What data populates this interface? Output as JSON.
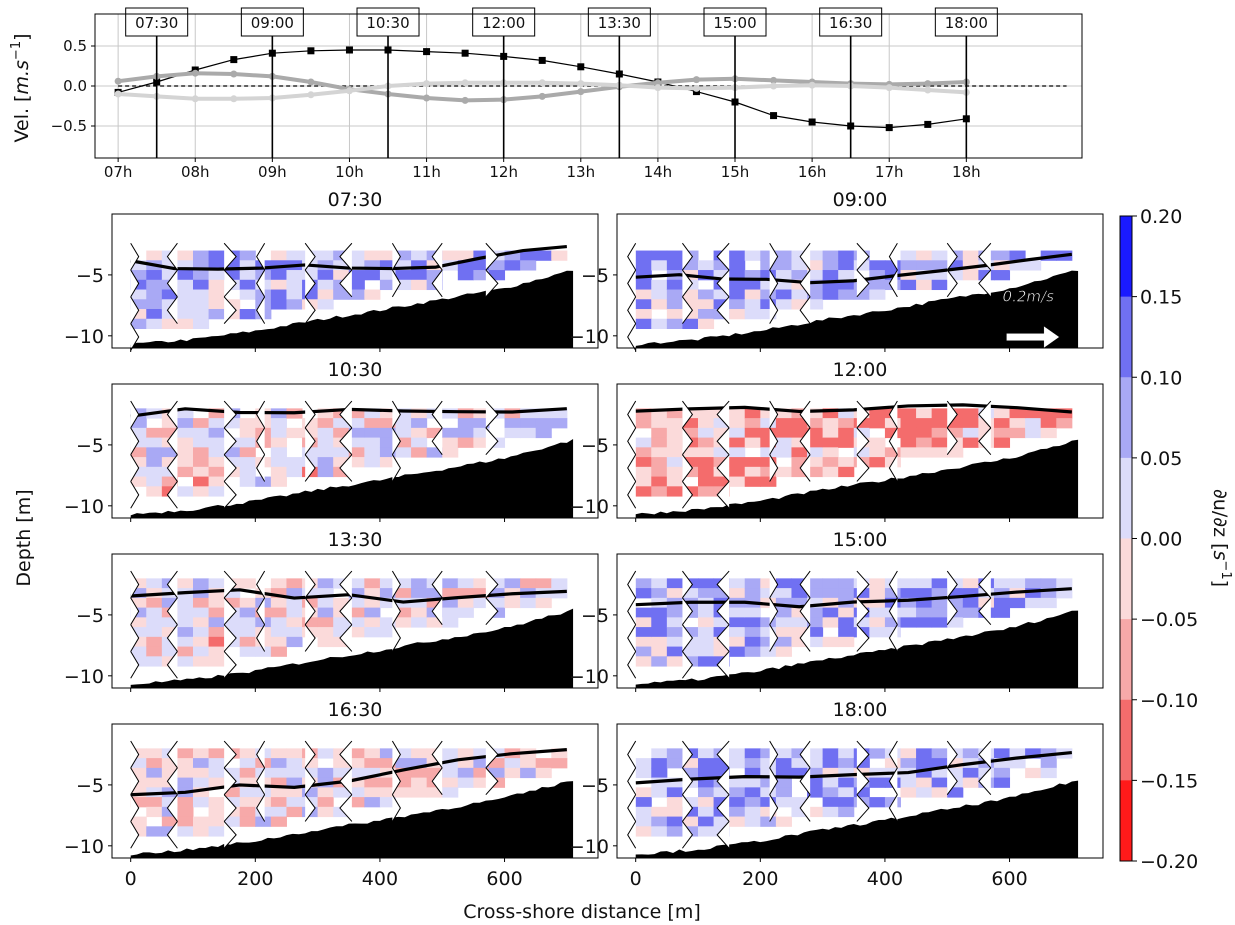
{
  "chart_data": [
    {
      "type": "line",
      "ylabel_text": "Vel. [",
      "ylabel_unit": "m.s",
      "ylabel_exp": "−1",
      "ylabel_close": "]",
      "x_ticks": [
        "07h",
        "08h",
        "09h",
        "10h",
        "11h",
        "12h",
        "13h",
        "14h",
        "15h",
        "16h",
        "17h",
        "18h"
      ],
      "y_ticks": [
        "0.5",
        "0.0",
        "−0.5"
      ],
      "y_tick_values": [
        0.5,
        0.0,
        -0.5
      ],
      "ylim": [
        -0.9,
        0.9
      ],
      "xlim": [
        6.7,
        19.5
      ],
      "grid": true,
      "time_markers": [
        {
          "label": "07:30",
          "hour": 7.5
        },
        {
          "label": "09:00",
          "hour": 9.0
        },
        {
          "label": "10:30",
          "hour": 10.5
        },
        {
          "label": "12:00",
          "hour": 12.0
        },
        {
          "label": "13:30",
          "hour": 13.5
        },
        {
          "label": "15:00",
          "hour": 15.0
        },
        {
          "label": "16:30",
          "hour": 16.5
        },
        {
          "label": "18:00",
          "hour": 18.0
        }
      ],
      "series": [
        {
          "color": "#000000",
          "x": [
            7,
            7.5,
            8,
            8.5,
            9,
            9.5,
            10,
            10.5,
            11,
            11.5,
            12,
            12.5,
            13,
            13.5,
            14,
            14.5,
            15,
            15.5,
            16,
            16.5,
            17,
            17.5,
            18
          ],
          "values": [
            -0.08,
            0.05,
            0.2,
            0.33,
            0.41,
            0.44,
            0.45,
            0.45,
            0.43,
            0.41,
            0.37,
            0.32,
            0.24,
            0.15,
            0.05,
            -0.07,
            -0.2,
            -0.37,
            -0.45,
            -0.5,
            -0.52,
            -0.48,
            -0.41
          ]
        },
        {
          "color": "#aaaaaa",
          "x": [
            7,
            7.5,
            8,
            8.5,
            9,
            9.5,
            10,
            10.5,
            11,
            11.5,
            12,
            12.5,
            13,
            13.5,
            14,
            14.5,
            15,
            15.5,
            16,
            16.5,
            17,
            17.5,
            18
          ],
          "values": [
            0.06,
            0.12,
            0.16,
            0.15,
            0.12,
            0.05,
            -0.04,
            -0.1,
            -0.15,
            -0.18,
            -0.17,
            -0.13,
            -0.07,
            -0.01,
            0.04,
            0.08,
            0.09,
            0.07,
            0.05,
            0.03,
            0.02,
            0.03,
            0.05
          ]
        },
        {
          "color": "#d4d4d4",
          "x": [
            7,
            7.5,
            8,
            8.5,
            9,
            9.5,
            10,
            10.5,
            11,
            11.5,
            12,
            12.5,
            13,
            13.5,
            14,
            14.5,
            15,
            15.5,
            16,
            16.5,
            17,
            17.5,
            18
          ],
          "values": [
            -0.1,
            -0.13,
            -0.16,
            -0.16,
            -0.15,
            -0.11,
            -0.06,
            0.0,
            0.03,
            0.04,
            0.04,
            0.04,
            0.03,
            0.01,
            -0.02,
            -0.03,
            -0.02,
            0.0,
            0.01,
            0.0,
            -0.02,
            -0.05,
            -0.08
          ]
        }
      ]
    },
    {
      "type": "heatmap",
      "panels": [
        {
          "title": "07:30",
          "surface": -3.0,
          "contour": [
            -4.0,
            -4.3,
            -4.6,
            -4.4,
            -4.3,
            -4.5,
            -4.6,
            -4.2,
            -3.8,
            -3.0,
            -2.8
          ],
          "sign": 1
        },
        {
          "title": "09:00",
          "surface": -3.0,
          "contour": [
            -5.1,
            -5.0,
            -5.3,
            -5.4,
            -5.6,
            -5.5,
            -5.2,
            -4.8,
            -4.2,
            -3.7,
            -3.5
          ],
          "sign": 1
        },
        {
          "title": "10:30",
          "surface": -2.0,
          "contour": [
            -2.5,
            -2.2,
            -2.3,
            -2.4,
            -2.1,
            -2.2,
            -2.3,
            -2.1,
            -2.0
          ],
          "sign": 0
        },
        {
          "title": "12:00",
          "surface": -2.0,
          "contour": [
            -2.2,
            -2.0,
            -2.1,
            -2.2,
            -2.0,
            -1.8,
            -1.9,
            -2.1,
            -2.3
          ],
          "sign": -1
        },
        {
          "title": "13:30",
          "surface": -2.0,
          "contour": [
            -3.6,
            -3.3,
            -3.0,
            -3.5,
            -3.2,
            -3.8,
            -3.5,
            -3.1,
            -2.9
          ],
          "sign": 0
        },
        {
          "title": "15:00",
          "surface": -2.0,
          "contour": [
            -4.1,
            -4.0,
            -3.8,
            -4.2,
            -4.0,
            -3.6,
            -3.4,
            -3.1,
            -2.7
          ],
          "sign": 1
        },
        {
          "title": "16:30",
          "surface": -2.0,
          "contour": [
            -6.0,
            -5.5,
            -5.0,
            -5.2,
            -4.5,
            -3.6,
            -3.0,
            -2.5,
            -2.2
          ],
          "sign": 0
        },
        {
          "title": "18:00",
          "surface": -2.0,
          "contour": [
            -4.9,
            -4.6,
            -4.3,
            -4.4,
            -4.1,
            -3.8,
            -3.3,
            -2.7,
            -2.2
          ],
          "sign": 1
        }
      ],
      "x_ticks": [
        "0",
        "200",
        "400",
        "600"
      ],
      "x_tick_values": [
        0,
        200,
        400,
        600
      ],
      "y_ticks": [
        "−5",
        "−10"
      ],
      "y_tick_values": [
        -5,
        -10
      ],
      "xlim": [
        -30,
        750
      ],
      "ylim": [
        -11,
        0
      ],
      "xlabel": "Cross-shore distance [m]",
      "ylabel": "Depth [m]",
      "arrow_label": "0.2m/s",
      "bottom_profile": [
        [
          0,
          -10.7
        ],
        [
          100,
          -10.3
        ],
        [
          200,
          -9.6
        ],
        [
          300,
          -8.7
        ],
        [
          400,
          -7.9
        ],
        [
          500,
          -7.0
        ],
        [
          600,
          -6.1
        ],
        [
          710,
          -4.6
        ]
      ]
    },
    {
      "type": "colorbar",
      "label_main": "∂u/∂z [",
      "label_unit": "s",
      "label_exp": "−1",
      "label_close": "]",
      "ticks": [
        "0.20",
        "0.15",
        "0.10",
        "0.05",
        "0.00",
        "−0.05",
        "−0.10",
        "−0.15",
        "−0.20"
      ],
      "tick_values": [
        0.2,
        0.15,
        0.1,
        0.05,
        0.0,
        -0.05,
        -0.1,
        -0.15,
        -0.2
      ],
      "colors": [
        "#1a1aff",
        "#7070f2",
        "#a9a9f5",
        "#dcdcfa",
        "#fbdada",
        "#f7a9a9",
        "#f46c6c",
        "#ff1a1a"
      ]
    }
  ]
}
